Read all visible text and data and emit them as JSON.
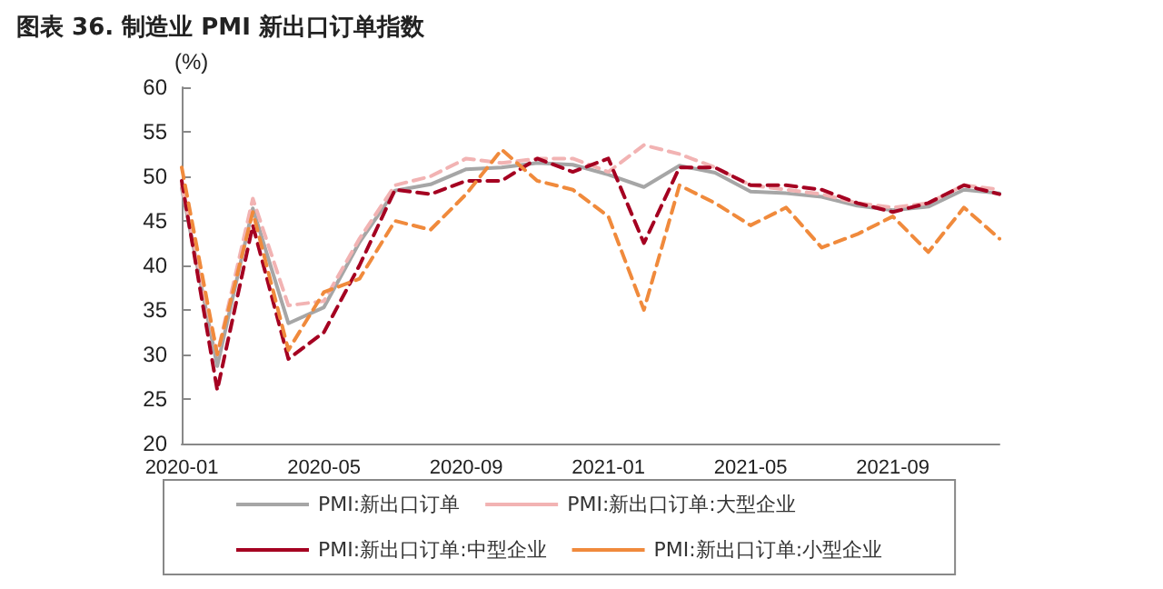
{
  "chart_data": {
    "type": "line",
    "title": "图表 36. 制造业 PMI 新出口订单指数",
    "ylabel": "(%)",
    "categories": [
      "2020-01",
      null,
      null,
      null,
      "2020-05",
      null,
      null,
      null,
      "2020-09",
      null,
      null,
      null,
      "2021-01",
      null,
      null,
      null,
      "2021-05",
      null,
      null,
      null,
      "2021-09",
      null,
      null,
      null
    ],
    "series": [
      {
        "name": "PMI:新出口订单",
        "color": "#a6a6a6",
        "line_style": "solid",
        "values": [
          48.7,
          28.7,
          46.4,
          33.5,
          35.3,
          42.6,
          48.4,
          49.1,
          50.8,
          51.0,
          51.5,
          51.3,
          50.2,
          48.8,
          51.2,
          50.4,
          48.3,
          48.1,
          47.7,
          46.7,
          46.2,
          46.6,
          48.5,
          48.1
        ]
      },
      {
        "name": "PMI:新出口订单:大型企业",
        "color": "#f2b3b3",
        "line_style": "dashed",
        "values": [
          49,
          30,
          47.5,
          35.5,
          36,
          43,
          49,
          50,
          52,
          51.5,
          52,
          52,
          50.5,
          53.5,
          52.5,
          51,
          49,
          48.5,
          48,
          47,
          46.5,
          47,
          49,
          48.5
        ]
      },
      {
        "name": "PMI:新出口订单:中型企业",
        "color": "#a50021",
        "line_style": "dashed",
        "values": [
          49.5,
          26,
          44.5,
          29.5,
          32.5,
          40,
          48.5,
          48,
          49.5,
          49.5,
          52,
          50.5,
          52,
          42.5,
          51,
          51,
          49,
          49,
          48.5,
          47,
          46,
          47,
          49,
          48
        ]
      },
      {
        "name": "PMI:新出口订单:小型企业",
        "color": "#f08a3c",
        "line_style": "dashed",
        "values": [
          51,
          30,
          46,
          30.5,
          37,
          38.5,
          45,
          44,
          48,
          53,
          49.5,
          48.5,
          45.5,
          35,
          49,
          47,
          44.5,
          46.5,
          42,
          43.5,
          45.5,
          41.5,
          46.5,
          43
        ]
      }
    ],
    "ylim": [
      20,
      60
    ],
    "yticks": [
      20,
      25,
      30,
      35,
      40,
      45,
      50,
      55,
      60
    ],
    "grid": false,
    "legend": "bottom",
    "marker": "none"
  }
}
